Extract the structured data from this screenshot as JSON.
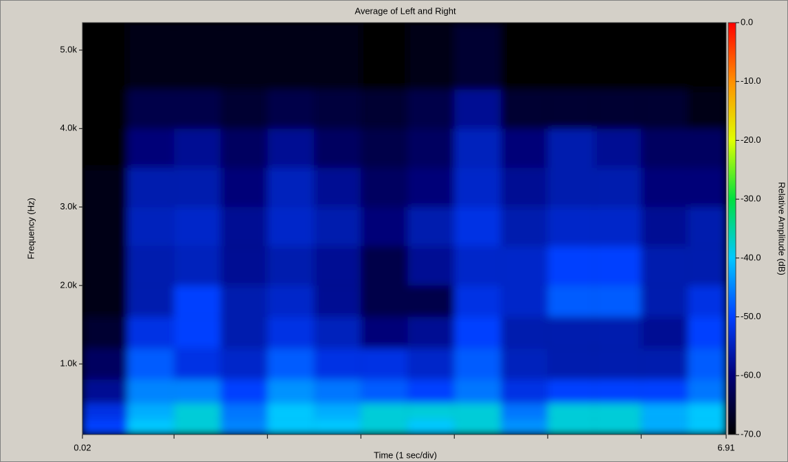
{
  "chart_data": {
    "type": "heatmap",
    "title": "Average of Left and Right",
    "xlabel": "Time (1 sec/div)",
    "ylabel": "Frequency (Hz)",
    "colorbar_label": "Relative Amplitude (dB)",
    "x_edges": [
      0.02,
      0.5,
      1,
      1.5,
      2,
      2.5,
      3,
      3.5,
      4,
      4.5,
      5,
      5.5,
      6,
      6.5,
      6.91
    ],
    "y_edges": [
      100,
      300,
      500,
      800,
      1200,
      1600,
      2000,
      2500,
      3000,
      3500,
      4000,
      4500,
      5350
    ],
    "z": [
      [
        -50,
        -40,
        -38,
        -45,
        -40,
        -40,
        -38,
        -40,
        -38,
        -44,
        -38,
        -38,
        -42,
        -40
      ],
      [
        -52,
        -42,
        -38,
        -46,
        -40,
        -42,
        -38,
        -38,
        -38,
        -46,
        -38,
        -38,
        -42,
        -40
      ],
      [
        -58,
        -45,
        -45,
        -50,
        -44,
        -46,
        -48,
        -50,
        -46,
        -52,
        -50,
        -50,
        -50,
        -46
      ],
      [
        -62,
        -48,
        -52,
        -54,
        -48,
        -52,
        -52,
        -54,
        -48,
        -55,
        -56,
        -56,
        -56,
        -48
      ],
      [
        -66,
        -52,
        -50,
        -56,
        -52,
        -55,
        -60,
        -58,
        -50,
        -56,
        -56,
        -56,
        -58,
        -50
      ],
      [
        -68,
        -56,
        -50,
        -56,
        -54,
        -58,
        -64,
        -64,
        -52,
        -54,
        -48,
        -48,
        -56,
        -52
      ],
      [
        -68,
        -56,
        -55,
        -58,
        -56,
        -58,
        -64,
        -58,
        -54,
        -54,
        -50,
        -50,
        -56,
        -56
      ],
      [
        -68,
        -55,
        -54,
        -58,
        -54,
        -56,
        -60,
        -56,
        -52,
        -56,
        -54,
        -54,
        -58,
        -56
      ],
      [
        -68,
        -56,
        -56,
        -60,
        -55,
        -58,
        -62,
        -60,
        -54,
        -58,
        -56,
        -56,
        -60,
        -60
      ],
      [
        -70,
        -60,
        -58,
        -62,
        -58,
        -62,
        -64,
        -62,
        -55,
        -60,
        -56,
        -58,
        -62,
        -62
      ],
      [
        -70,
        -64,
        -64,
        -66,
        -64,
        -65,
        -66,
        -64,
        -58,
        -66,
        -66,
        -66,
        -66,
        -68
      ],
      [
        -70,
        -68,
        -68,
        -68,
        -68,
        -68,
        -70,
        -68,
        -66,
        -70,
        -70,
        -70,
        -70,
        -70
      ]
    ],
    "xlim": [
      0.02,
      6.91
    ],
    "xticks": [
      0.02,
      6.91
    ],
    "xminor_ticks": [
      1,
      2,
      3,
      4,
      5,
      6
    ],
    "ylim": [
      100,
      5350
    ],
    "yticks": [
      {
        "value": 1000,
        "label": "1.0k"
      },
      {
        "value": 2000,
        "label": "2.0k"
      },
      {
        "value": 3000,
        "label": "3.0k"
      },
      {
        "value": 4000,
        "label": "4.0k"
      },
      {
        "value": 5000,
        "label": "5.0k"
      }
    ],
    "clim": [
      -70,
      0
    ],
    "cticks": [
      {
        "value": 0,
        "label": "0.0"
      },
      {
        "value": -10,
        "label": "-10.0"
      },
      {
        "value": -20,
        "label": "-20.0"
      },
      {
        "value": -30,
        "label": "-30.0"
      },
      {
        "value": -40,
        "label": "-40.0"
      },
      {
        "value": -50,
        "label": "-50.0"
      },
      {
        "value": -60,
        "label": "-60.0"
      },
      {
        "value": -70,
        "label": "-70.0"
      }
    ],
    "colorscale": [
      "#000000",
      "#000078",
      "#0040ff",
      "#00c8ff",
      "#00e040",
      "#e0ff00",
      "#ff9000",
      "#ff0000"
    ]
  }
}
